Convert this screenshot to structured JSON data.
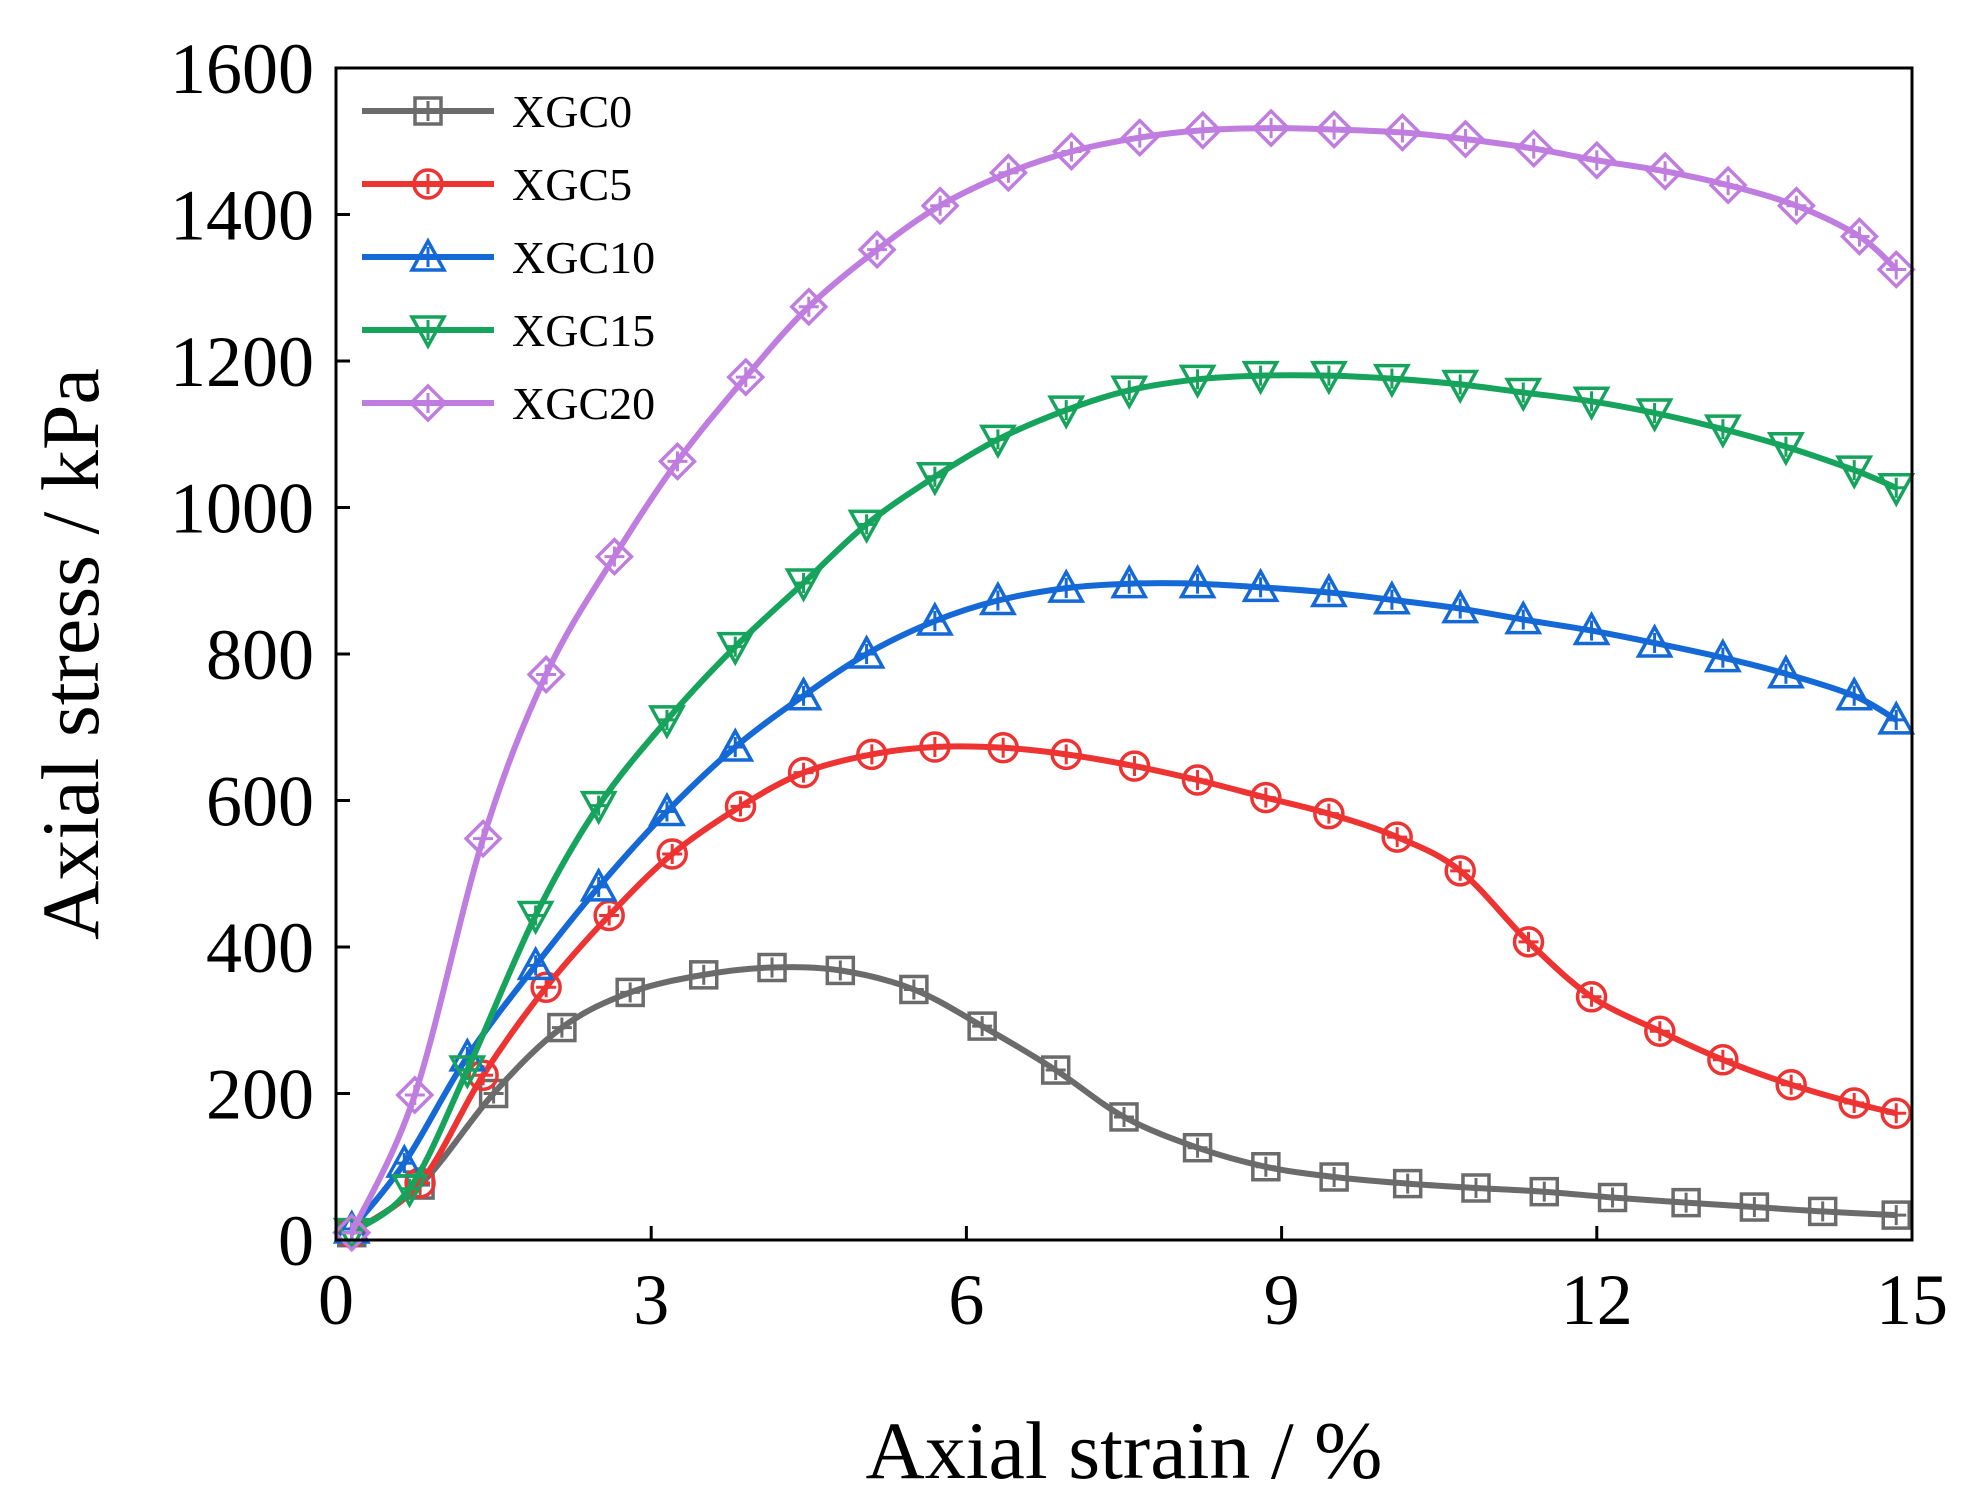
{
  "chart_data": {
    "type": "line",
    "title": "",
    "xlabel": "Axial strain / %",
    "ylabel": "Axial stress / kPa",
    "xlim": [
      0,
      15
    ],
    "ylim": [
      0,
      1600
    ],
    "xticks": [
      0,
      3,
      6,
      9,
      12,
      15
    ],
    "yticks": [
      0,
      200,
      400,
      600,
      800,
      1000,
      1200,
      1400,
      1600
    ],
    "x_tick_labels": [
      "0",
      "3",
      "6",
      "9",
      "12",
      "15"
    ],
    "y_tick_labels": [
      "0",
      "200",
      "400",
      "600",
      "800",
      "1000",
      "1200",
      "1400",
      "1600"
    ],
    "grid": false,
    "legend_position": "top-left",
    "series": [
      {
        "name": "XGC0",
        "color": "#6b6b6b",
        "marker": "square",
        "x": [
          0.15,
          0.8,
          1.5,
          2.15,
          2.8,
          3.5,
          4.15,
          4.8,
          5.5,
          6.15,
          6.85,
          7.5,
          8.2,
          8.85,
          9.5,
          10.2,
          10.85,
          11.5,
          12.15,
          12.85,
          13.5,
          14.15,
          14.85
        ],
        "y": [
          10,
          75,
          200,
          290,
          338,
          362,
          372,
          368,
          342,
          292,
          232,
          168,
          126,
          100,
          86,
          77,
          71,
          66,
          58,
          51,
          45,
          39,
          34
        ]
      },
      {
        "name": "XGC5",
        "color": "#ee3333",
        "marker": "circle",
        "x": [
          0.15,
          0.8,
          1.4,
          2.0,
          2.6,
          3.2,
          3.85,
          4.45,
          5.1,
          5.7,
          6.35,
          6.95,
          7.6,
          8.2,
          8.85,
          9.45,
          10.1,
          10.7,
          11.35,
          11.95,
          12.6,
          13.2,
          13.85,
          14.45,
          14.85
        ],
        "y": [
          10,
          78,
          225,
          345,
          443,
          527,
          592,
          638,
          663,
          673,
          672,
          663,
          647,
          628,
          604,
          582,
          550,
          504,
          407,
          332,
          285,
          246,
          212,
          187,
          173
        ]
      },
      {
        "name": "XGC10",
        "color": "#1469d6",
        "marker": "triangle-up",
        "x": [
          0.15,
          0.65,
          1.25,
          1.9,
          2.5,
          3.15,
          3.8,
          4.45,
          5.05,
          5.7,
          6.3,
          6.95,
          7.55,
          8.2,
          8.8,
          9.45,
          10.05,
          10.7,
          11.3,
          11.95,
          12.55,
          13.2,
          13.8,
          14.45,
          14.85
        ],
        "y": [
          15,
          105,
          250,
          375,
          482,
          585,
          673,
          743,
          800,
          845,
          873,
          890,
          896,
          896,
          891,
          884,
          874,
          862,
          847,
          832,
          815,
          795,
          773,
          743,
          710
        ]
      },
      {
        "name": "XGC15",
        "color": "#16a35c",
        "marker": "triangle-down",
        "x": [
          0.15,
          0.7,
          1.25,
          1.9,
          2.5,
          3.15,
          3.8,
          4.45,
          5.05,
          5.7,
          6.3,
          6.95,
          7.55,
          8.2,
          8.8,
          9.45,
          10.05,
          10.7,
          11.3,
          11.95,
          12.55,
          13.2,
          13.8,
          14.45,
          14.85
        ],
        "y": [
          10,
          70,
          232,
          443,
          593,
          710,
          810,
          897,
          977,
          1042,
          1093,
          1133,
          1160,
          1175,
          1180,
          1180,
          1176,
          1168,
          1157,
          1145,
          1129,
          1107,
          1083,
          1051,
          1027
        ]
      },
      {
        "name": "XGC20",
        "color": "#c07de0",
        "marker": "diamond",
        "x": [
          0.15,
          0.75,
          1.4,
          2.0,
          2.65,
          3.25,
          3.9,
          4.5,
          5.15,
          5.75,
          6.4,
          7.0,
          7.65,
          8.25,
          8.9,
          9.5,
          10.15,
          10.75,
          11.4,
          12.0,
          12.65,
          13.25,
          13.9,
          14.5,
          14.85
        ],
        "y": [
          10,
          198,
          548,
          772,
          933,
          1063,
          1178,
          1274,
          1352,
          1412,
          1457,
          1486,
          1505,
          1515,
          1518,
          1516,
          1512,
          1503,
          1490,
          1474,
          1459,
          1440,
          1412,
          1370,
          1325
        ]
      }
    ]
  }
}
